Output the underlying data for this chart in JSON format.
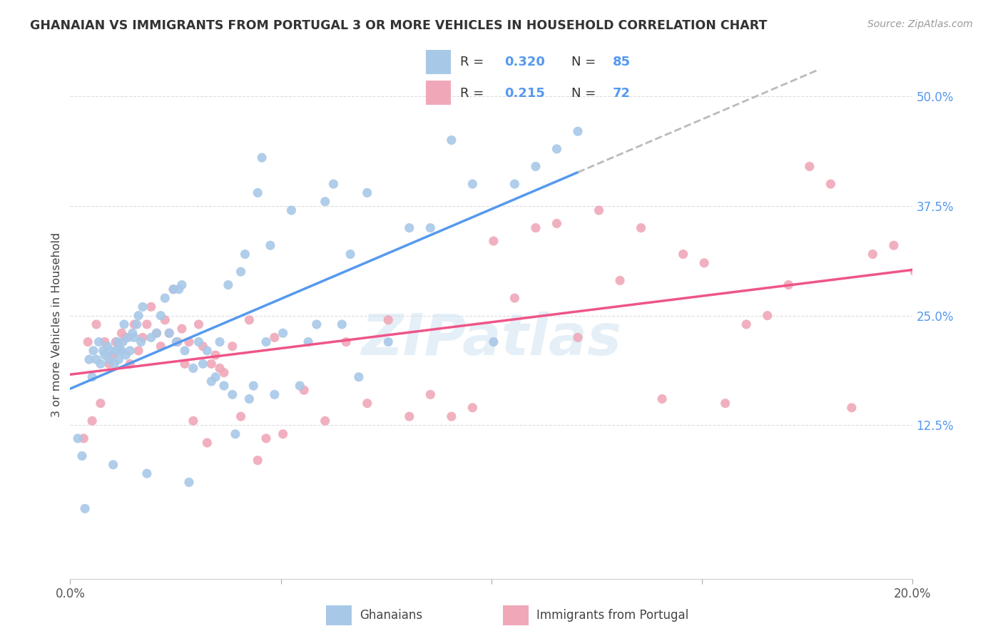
{
  "title": "GHANAIAN VS IMMIGRANTS FROM PORTUGAL 3 OR MORE VEHICLES IN HOUSEHOLD CORRELATION CHART",
  "source": "Source: ZipAtlas.com",
  "ylabel": "3 or more Vehicles in Household",
  "y_ticks_labels": [
    "12.5%",
    "25.0%",
    "37.5%",
    "50.0%"
  ],
  "y_tick_vals": [
    12.5,
    25.0,
    37.5,
    50.0
  ],
  "x_range": [
    0.0,
    20.0
  ],
  "y_range": [
    -5.0,
    53.0
  ],
  "legend1_R": "0.320",
  "legend1_N": "85",
  "legend2_R": "0.215",
  "legend2_N": "72",
  "blue_color": "#a8c8e8",
  "pink_color": "#f0a8b8",
  "line_blue": "#5599ee",
  "line_pink": "#ee5588",
  "dash_color": "#bbbbbb",
  "watermark": "ZIPatlas",
  "grid_color": "#dddddd",
  "title_color": "#333333",
  "source_color": "#999999",
  "tick_label_color": "#5599ee",
  "ghanaians_x": [
    0.18,
    0.28,
    0.35,
    0.45,
    0.52,
    0.55,
    0.62,
    0.68,
    0.72,
    0.78,
    0.82,
    0.88,
    0.92,
    0.95,
    1.02,
    1.05,
    1.08,
    1.12,
    1.15,
    1.18,
    1.22,
    1.25,
    1.28,
    1.32,
    1.38,
    1.42,
    1.48,
    1.52,
    1.58,
    1.62,
    1.68,
    1.72,
    1.82,
    1.92,
    2.05,
    2.15,
    2.25,
    2.35,
    2.45,
    2.52,
    2.58,
    2.65,
    2.72,
    2.82,
    2.92,
    3.05,
    3.15,
    3.25,
    3.35,
    3.45,
    3.55,
    3.65,
    3.75,
    3.85,
    3.92,
    4.05,
    4.15,
    4.25,
    4.35,
    4.45,
    4.55,
    4.65,
    4.75,
    4.85,
    5.05,
    5.25,
    5.45,
    5.65,
    5.85,
    6.05,
    6.25,
    6.45,
    6.65,
    6.85,
    7.05,
    7.55,
    8.05,
    8.55,
    9.05,
    9.55,
    10.05,
    10.55,
    11.05,
    11.55,
    12.05
  ],
  "ghanaians_y": [
    11.0,
    9.0,
    3.0,
    20.0,
    18.0,
    21.0,
    20.0,
    22.0,
    19.5,
    21.0,
    20.5,
    21.5,
    20.0,
    21.0,
    8.0,
    19.5,
    21.0,
    22.0,
    20.0,
    21.0,
    21.0,
    22.0,
    24.0,
    20.5,
    22.5,
    21.0,
    23.0,
    22.5,
    24.0,
    25.0,
    22.0,
    26.0,
    7.0,
    22.5,
    23.0,
    25.0,
    27.0,
    23.0,
    28.0,
    22.0,
    28.0,
    28.5,
    21.0,
    6.0,
    19.0,
    22.0,
    19.5,
    21.0,
    17.5,
    18.0,
    22.0,
    17.0,
    28.5,
    16.0,
    11.5,
    30.0,
    32.0,
    15.5,
    17.0,
    39.0,
    43.0,
    22.0,
    33.0,
    16.0,
    23.0,
    37.0,
    17.0,
    22.0,
    24.0,
    38.0,
    40.0,
    24.0,
    32.0,
    18.0,
    39.0,
    22.0,
    35.0,
    35.0,
    45.0,
    40.0,
    22.0,
    40.0,
    42.0,
    44.0,
    46.0
  ],
  "portugal_x": [
    0.32,
    0.42,
    0.52,
    0.62,
    0.72,
    0.82,
    0.92,
    1.02,
    1.08,
    1.15,
    1.22,
    1.32,
    1.42,
    1.52,
    1.62,
    1.72,
    1.82,
    1.92,
    2.05,
    2.15,
    2.25,
    2.35,
    2.45,
    2.55,
    2.65,
    2.72,
    2.82,
    2.92,
    3.05,
    3.15,
    3.25,
    3.35,
    3.45,
    3.55,
    3.65,
    3.85,
    4.05,
    4.25,
    4.45,
    4.65,
    4.85,
    5.05,
    5.55,
    6.05,
    6.55,
    7.05,
    7.55,
    8.05,
    8.55,
    9.05,
    9.55,
    10.05,
    10.55,
    11.05,
    11.55,
    12.05,
    12.55,
    13.05,
    13.55,
    14.05,
    14.55,
    15.05,
    15.55,
    16.05,
    16.55,
    17.05,
    17.55,
    18.05,
    18.55,
    19.05,
    19.55,
    20.05
  ],
  "portugal_y": [
    11.0,
    22.0,
    13.0,
    24.0,
    15.0,
    22.0,
    19.5,
    20.5,
    22.0,
    21.5,
    23.0,
    22.5,
    19.5,
    24.0,
    21.0,
    22.5,
    24.0,
    26.0,
    23.0,
    21.5,
    24.5,
    23.0,
    28.0,
    22.0,
    23.5,
    19.5,
    22.0,
    13.0,
    24.0,
    21.5,
    10.5,
    19.5,
    20.5,
    19.0,
    18.5,
    21.5,
    13.5,
    24.5,
    8.5,
    11.0,
    22.5,
    11.5,
    16.5,
    13.0,
    22.0,
    15.0,
    24.5,
    13.5,
    16.0,
    13.5,
    14.5,
    33.5,
    27.0,
    35.0,
    35.5,
    22.5,
    37.0,
    29.0,
    35.0,
    15.5,
    32.0,
    31.0,
    15.0,
    24.0,
    25.0,
    28.5,
    42.0,
    40.0,
    14.5,
    32.0,
    33.0,
    30.0
  ]
}
